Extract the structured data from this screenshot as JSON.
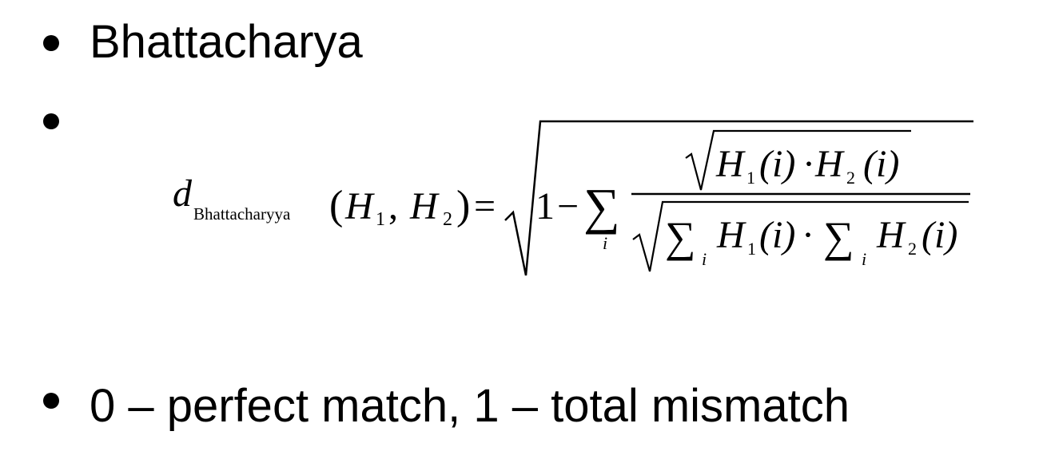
{
  "slide": {
    "bullets": [
      {
        "text": "Bhattacharya"
      },
      {
        "text": ""
      },
      {
        "text": "0 – perfect match, 1 – total mismatch"
      }
    ]
  },
  "formula": {
    "d": "d",
    "subscript": "Bhattacharyya",
    "open_paren": "(",
    "H": "H",
    "one": "1",
    "two": "2",
    "comma": ",",
    "close_paren": ")",
    "equals": "=",
    "minus": "−",
    "sum": "∑",
    "index": "i",
    "arg_i": "(i)",
    "dot": "·"
  }
}
